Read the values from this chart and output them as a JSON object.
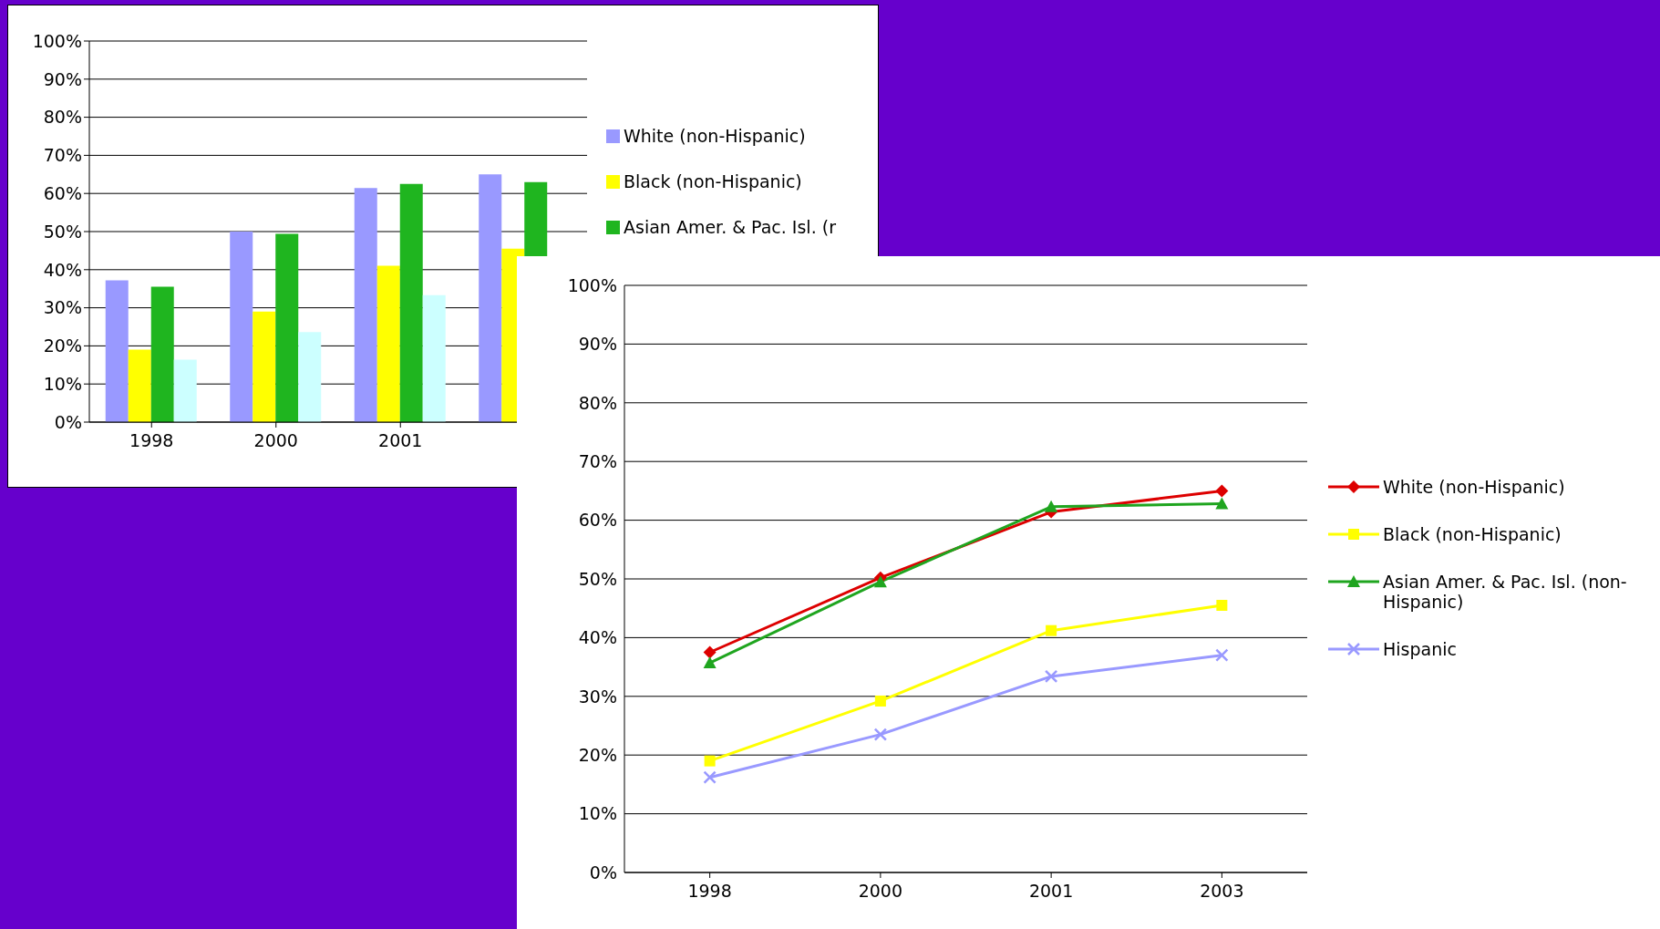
{
  "chart_data": [
    {
      "type": "bar",
      "categories": [
        "1998",
        "2000",
        "2001",
        null
      ],
      "series": [
        {
          "name": "White (non-Hispanic)",
          "color": "#9999ff",
          "values": [
            37.2,
            50,
            61.4,
            65
          ]
        },
        {
          "name": "Black (non-Hispanic)",
          "color": "#ffff00",
          "values": [
            19,
            29,
            41,
            45.5
          ]
        },
        {
          "name": "Asian Amer. & Pac. Isl. (r",
          "color": "#1fb51f",
          "values": [
            35.5,
            49.4,
            62.5,
            63
          ]
        },
        {
          "color": "#ccffff",
          "values": [
            16.4,
            23.6,
            33.3,
            null
          ]
        }
      ],
      "ylim": [
        0,
        100
      ],
      "yticks": [
        {
          "value": 0,
          "label": "0%"
        },
        {
          "value": 10,
          "label": "10%"
        },
        {
          "value": 20,
          "label": "20%"
        },
        {
          "value": 30,
          "label": "30%"
        },
        {
          "value": 40,
          "label": "40%"
        },
        {
          "value": 50,
          "label": "50%"
        },
        {
          "value": 60,
          "label": "60%"
        },
        {
          "value": 70,
          "label": "70%"
        },
        {
          "value": 80,
          "label": "80%"
        },
        {
          "value": 90,
          "label": "90%"
        },
        {
          "value": 100,
          "label": "100%"
        }
      ],
      "grid": "y",
      "legend": "right"
    },
    {
      "type": "line",
      "categories": [
        "1998",
        "2000",
        "2001",
        "2003"
      ],
      "series": [
        {
          "name": "White (non-Hispanic)",
          "color": "#dd0000",
          "marker": "diamond",
          "values": [
            37.5,
            50.2,
            61.4,
            65
          ]
        },
        {
          "name": "Black (non-Hispanic)",
          "color": "#ffff00",
          "marker": "square",
          "values": [
            19,
            29.2,
            41.2,
            45.5
          ]
        },
        {
          "name": "Asian Amer. & Pac. Isl. (non-Hispanic)",
          "color": "#1fa51f",
          "marker": "triangle",
          "values": [
            35.7,
            49.5,
            62.3,
            62.8
          ]
        },
        {
          "name": "Hispanic",
          "color": "#9999ff",
          "marker": "cross",
          "values": [
            16.2,
            23.5,
            33.4,
            37
          ]
        }
      ],
      "ylim": [
        0,
        100
      ],
      "yticks": [
        {
          "value": 0,
          "label": "0%"
        },
        {
          "value": 10,
          "label": "10%"
        },
        {
          "value": 20,
          "label": "20%"
        },
        {
          "value": 30,
          "label": "30%"
        },
        {
          "value": 40,
          "label": "40%"
        },
        {
          "value": 50,
          "label": "50%"
        },
        {
          "value": 60,
          "label": "60%"
        },
        {
          "value": 70,
          "label": "70%"
        },
        {
          "value": 80,
          "label": "80%"
        },
        {
          "value": 90,
          "label": "90%"
        },
        {
          "value": 100,
          "label": "100%"
        }
      ],
      "grid": "y",
      "legend": "right"
    }
  ]
}
